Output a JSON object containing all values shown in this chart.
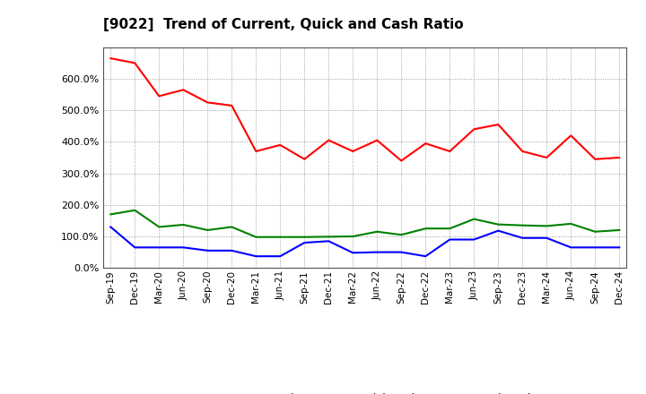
{
  "title": "[9022]  Trend of Current, Quick and Cash Ratio",
  "x_labels": [
    "Sep-19",
    "Dec-19",
    "Mar-20",
    "Jun-20",
    "Sep-20",
    "Dec-20",
    "Mar-21",
    "Jun-21",
    "Sep-21",
    "Dec-21",
    "Mar-22",
    "Jun-22",
    "Sep-22",
    "Dec-22",
    "Mar-23",
    "Jun-23",
    "Sep-23",
    "Dec-23",
    "Mar-24",
    "Jun-24",
    "Sep-24",
    "Dec-24"
  ],
  "current_ratio": [
    665,
    650,
    545,
    565,
    525,
    515,
    370,
    390,
    345,
    405,
    370,
    405,
    340,
    395,
    370,
    440,
    455,
    370,
    350,
    420,
    345,
    350
  ],
  "quick_ratio": [
    170,
    183,
    130,
    137,
    120,
    130,
    98,
    98,
    98,
    99,
    100,
    115,
    105,
    125,
    125,
    155,
    138,
    135,
    133,
    140,
    115,
    120
  ],
  "cash_ratio": [
    130,
    65,
    65,
    65,
    55,
    55,
    37,
    37,
    80,
    85,
    48,
    50,
    50,
    37,
    90,
    90,
    118,
    95,
    95,
    65,
    65,
    65
  ],
  "current_color": "#ff0000",
  "quick_color": "#008000",
  "cash_color": "#0000ff",
  "ylim": [
    0,
    700
  ],
  "yticks": [
    0,
    100,
    200,
    300,
    400,
    500,
    600
  ],
  "background_color": "#ffffff",
  "grid_color": "#999999"
}
